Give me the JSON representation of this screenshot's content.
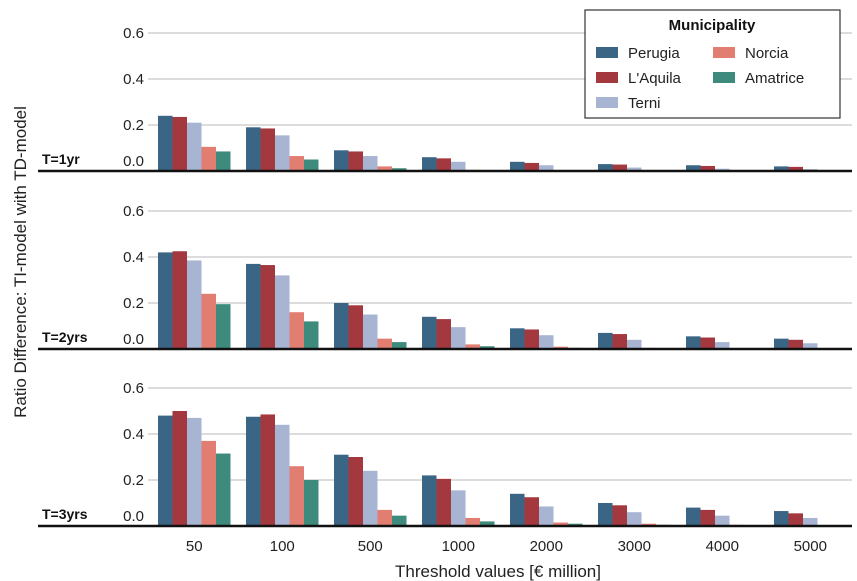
{
  "chart_data": {
    "type": "bar",
    "ylabel": "Ratio Difference: TI-model with TD-model",
    "xlabel": "Threshold values [€ million]",
    "categories": [
      "50",
      "100",
      "500",
      "1000",
      "2000",
      "3000",
      "4000",
      "5000"
    ],
    "ylim": [
      0,
      0.65
    ],
    "yticks": [
      "0.0",
      "0.2",
      "0.4",
      "0.6"
    ],
    "grid": "horizontal",
    "legend": {
      "title": "Municipality",
      "placement": "top-right",
      "entries": [
        "Perugia",
        "L'Aquila",
        "Terni",
        "Norcia",
        "Amatrice"
      ]
    },
    "colors": {
      "Perugia": "#3b6584",
      "L'Aquila": "#a3393f",
      "Terni": "#a7b5d3",
      "Norcia": "#e27d72",
      "Amatrice": "#3e8a7c"
    },
    "panels": [
      {
        "label": "T=1yr",
        "series": [
          {
            "name": "Perugia",
            "values": [
              0.24,
              0.19,
              0.09,
              0.06,
              0.04,
              0.03,
              0.025,
              0.02
            ]
          },
          {
            "name": "L'Aquila",
            "values": [
              0.235,
              0.185,
              0.085,
              0.055,
              0.035,
              0.028,
              0.022,
              0.018
            ]
          },
          {
            "name": "Terni",
            "values": [
              0.21,
              0.155,
              0.065,
              0.04,
              0.025,
              0.015,
              0.01,
              0.008
            ]
          },
          {
            "name": "Norcia",
            "values": [
              0.105,
              0.065,
              0.02,
              0.005,
              0.003,
              0.002,
              0.001,
              0.0
            ]
          },
          {
            "name": "Amatrice",
            "values": [
              0.085,
              0.05,
              0.012,
              0.002,
              0.001,
              0.0,
              0.0,
              0.0
            ]
          }
        ]
      },
      {
        "label": "T=2yrs",
        "series": [
          {
            "name": "Perugia",
            "values": [
              0.42,
              0.37,
              0.2,
              0.14,
              0.09,
              0.07,
              0.055,
              0.045
            ]
          },
          {
            "name": "L'Aquila",
            "values": [
              0.425,
              0.365,
              0.19,
              0.13,
              0.085,
              0.065,
              0.05,
              0.04
            ]
          },
          {
            "name": "Terni",
            "values": [
              0.385,
              0.32,
              0.15,
              0.095,
              0.06,
              0.04,
              0.03,
              0.025
            ]
          },
          {
            "name": "Norcia",
            "values": [
              0.24,
              0.16,
              0.045,
              0.02,
              0.01,
              0.005,
              0.003,
              0.002
            ]
          },
          {
            "name": "Amatrice",
            "values": [
              0.195,
              0.12,
              0.03,
              0.012,
              0.005,
              0.002,
              0.001,
              0.001
            ]
          }
        ]
      },
      {
        "label": "T=3yrs",
        "series": [
          {
            "name": "Perugia",
            "values": [
              0.48,
              0.475,
              0.31,
              0.22,
              0.14,
              0.1,
              0.08,
              0.065
            ]
          },
          {
            "name": "L'Aquila",
            "values": [
              0.5,
              0.485,
              0.3,
              0.205,
              0.125,
              0.09,
              0.07,
              0.055
            ]
          },
          {
            "name": "Terni",
            "values": [
              0.47,
              0.44,
              0.24,
              0.155,
              0.085,
              0.06,
              0.045,
              0.035
            ]
          },
          {
            "name": "Norcia",
            "values": [
              0.37,
              0.26,
              0.07,
              0.035,
              0.015,
              0.01,
              0.005,
              0.003
            ]
          },
          {
            "name": "Amatrice",
            "values": [
              0.315,
              0.2,
              0.045,
              0.02,
              0.01,
              0.005,
              0.002,
              0.001
            ]
          }
        ]
      }
    ]
  }
}
